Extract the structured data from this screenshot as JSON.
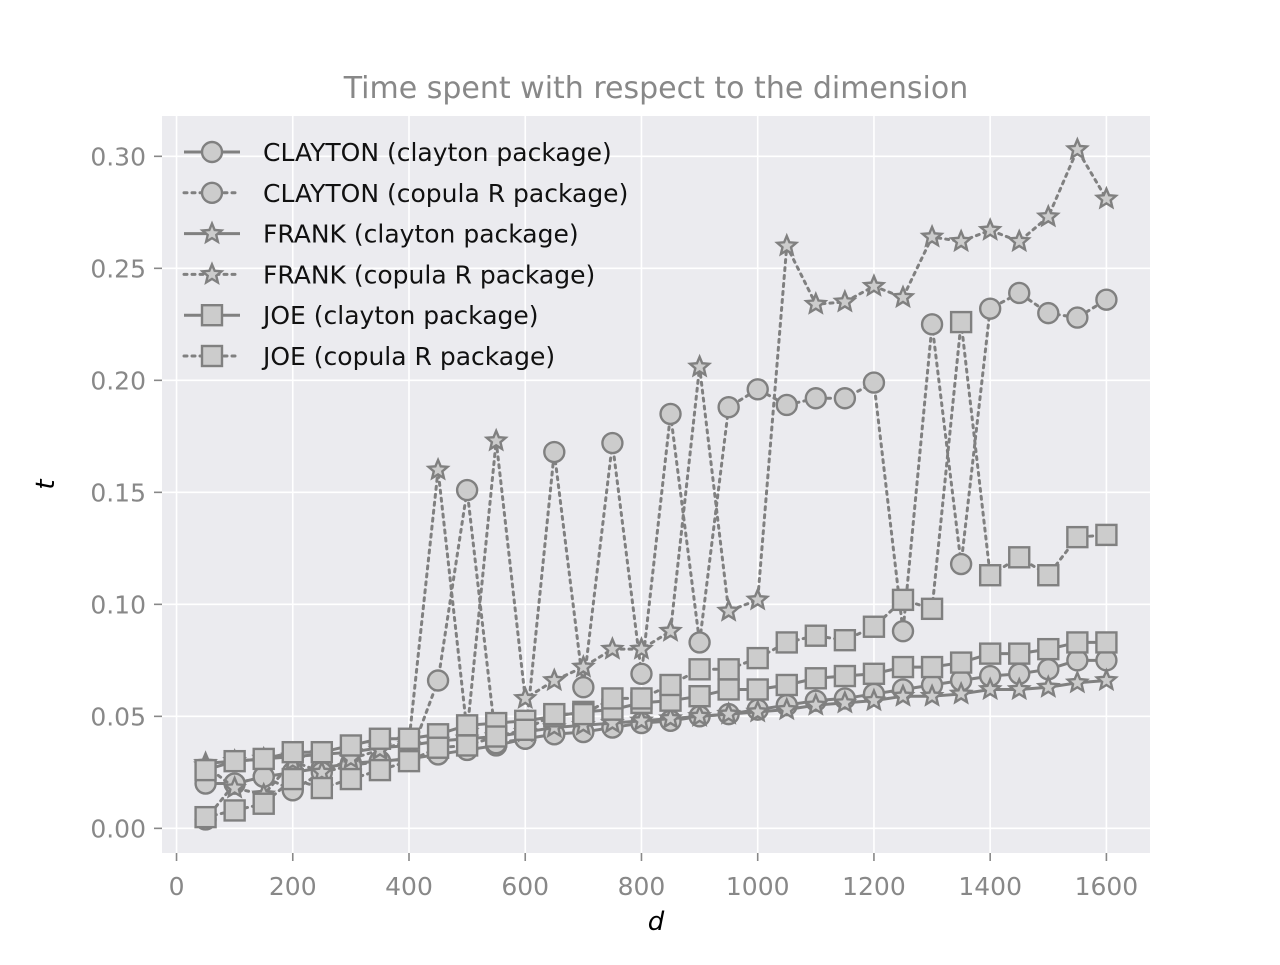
{
  "chart_data": {
    "type": "line",
    "title": "Time spent with respect to the dimension",
    "xlabel": "d",
    "ylabel": "t",
    "xlim": [
      -25,
      1675
    ],
    "ylim": [
      -0.011,
      0.318
    ],
    "xticks": [
      0,
      200,
      400,
      600,
      800,
      1000,
      1200,
      1400,
      1600
    ],
    "yticks": [
      0.0,
      0.05,
      0.1,
      0.15,
      0.2,
      0.25,
      0.3
    ],
    "ytick_labels": [
      "0.00",
      "0.05",
      "0.10",
      "0.15",
      "0.20",
      "0.25",
      "0.30"
    ],
    "grid": true,
    "legend_position": "top-left",
    "colors": {
      "line": "#808080",
      "marker_fill": "#cccccc",
      "plot_background": "#ebebef",
      "grid": "#ffffff"
    },
    "x": [
      50,
      100,
      150,
      200,
      250,
      300,
      350,
      400,
      450,
      500,
      550,
      600,
      650,
      700,
      750,
      800,
      850,
      900,
      950,
      1000,
      1050,
      1100,
      1150,
      1200,
      1250,
      1300,
      1350,
      1400,
      1450,
      1500,
      1550,
      1600
    ],
    "series": [
      {
        "name": "CLAYTON (clayton package)",
        "marker": "circle",
        "linestyle": "solid",
        "values": [
          0.02,
          0.02,
          0.023,
          0.025,
          0.027,
          0.029,
          0.03,
          0.031,
          0.033,
          0.035,
          0.037,
          0.04,
          0.042,
          0.043,
          0.045,
          0.047,
          0.048,
          0.05,
          0.051,
          0.053,
          0.055,
          0.057,
          0.058,
          0.06,
          0.062,
          0.064,
          0.066,
          0.068,
          0.069,
          0.071,
          0.075,
          0.075
        ]
      },
      {
        "name": "CLAYTON (copula R package)",
        "marker": "circle",
        "linestyle": "dotted",
        "values": [
          0.004,
          0.02,
          0.023,
          0.017,
          0.025,
          0.028,
          0.03,
          0.031,
          0.066,
          0.151,
          0.038,
          0.04,
          0.168,
          0.063,
          0.172,
          0.069,
          0.185,
          0.083,
          0.188,
          0.196,
          0.189,
          0.192,
          0.192,
          0.199,
          0.088,
          0.225,
          0.118,
          0.232,
          0.239,
          0.23,
          0.228,
          0.236
        ]
      },
      {
        "name": "FRANK (clayton package)",
        "marker": "star",
        "linestyle": "solid",
        "values": [
          0.029,
          0.03,
          0.031,
          0.032,
          0.033,
          0.034,
          0.036,
          0.037,
          0.039,
          0.04,
          0.041,
          0.043,
          0.045,
          0.046,
          0.047,
          0.048,
          0.049,
          0.05,
          0.051,
          0.052,
          0.053,
          0.055,
          0.056,
          0.057,
          0.059,
          0.059,
          0.06,
          0.062,
          0.062,
          0.063,
          0.065,
          0.066
        ]
      },
      {
        "name": "FRANK (copula R package)",
        "marker": "star",
        "linestyle": "dotted",
        "values": [
          0.028,
          0.018,
          0.015,
          0.03,
          0.025,
          0.031,
          0.035,
          0.039,
          0.16,
          0.043,
          0.173,
          0.058,
          0.066,
          0.072,
          0.08,
          0.08,
          0.088,
          0.206,
          0.097,
          0.102,
          0.26,
          0.234,
          0.235,
          0.242,
          0.237,
          0.264,
          0.262,
          0.267,
          0.262,
          0.273,
          0.303,
          0.281
        ]
      },
      {
        "name": "JOE (clayton package)",
        "marker": "square",
        "linestyle": "solid",
        "values": [
          0.026,
          0.03,
          0.031,
          0.034,
          0.034,
          0.037,
          0.04,
          0.04,
          0.042,
          0.046,
          0.047,
          0.048,
          0.05,
          0.052,
          0.053,
          0.056,
          0.057,
          0.059,
          0.062,
          0.062,
          0.064,
          0.067,
          0.068,
          0.069,
          0.072,
          0.072,
          0.074,
          0.078,
          0.078,
          0.08,
          0.083,
          0.083
        ]
      },
      {
        "name": "JOE (copula R package)",
        "marker": "square",
        "linestyle": "dotted",
        "values": [
          0.005,
          0.008,
          0.011,
          0.022,
          0.018,
          0.022,
          0.026,
          0.03,
          0.036,
          0.037,
          0.041,
          0.044,
          0.051,
          0.051,
          0.058,
          0.058,
          0.064,
          0.071,
          0.071,
          0.076,
          0.083,
          0.086,
          0.084,
          0.09,
          0.102,
          0.098,
          0.226,
          0.113,
          0.121,
          0.113,
          0.13,
          0.131
        ]
      }
    ]
  }
}
